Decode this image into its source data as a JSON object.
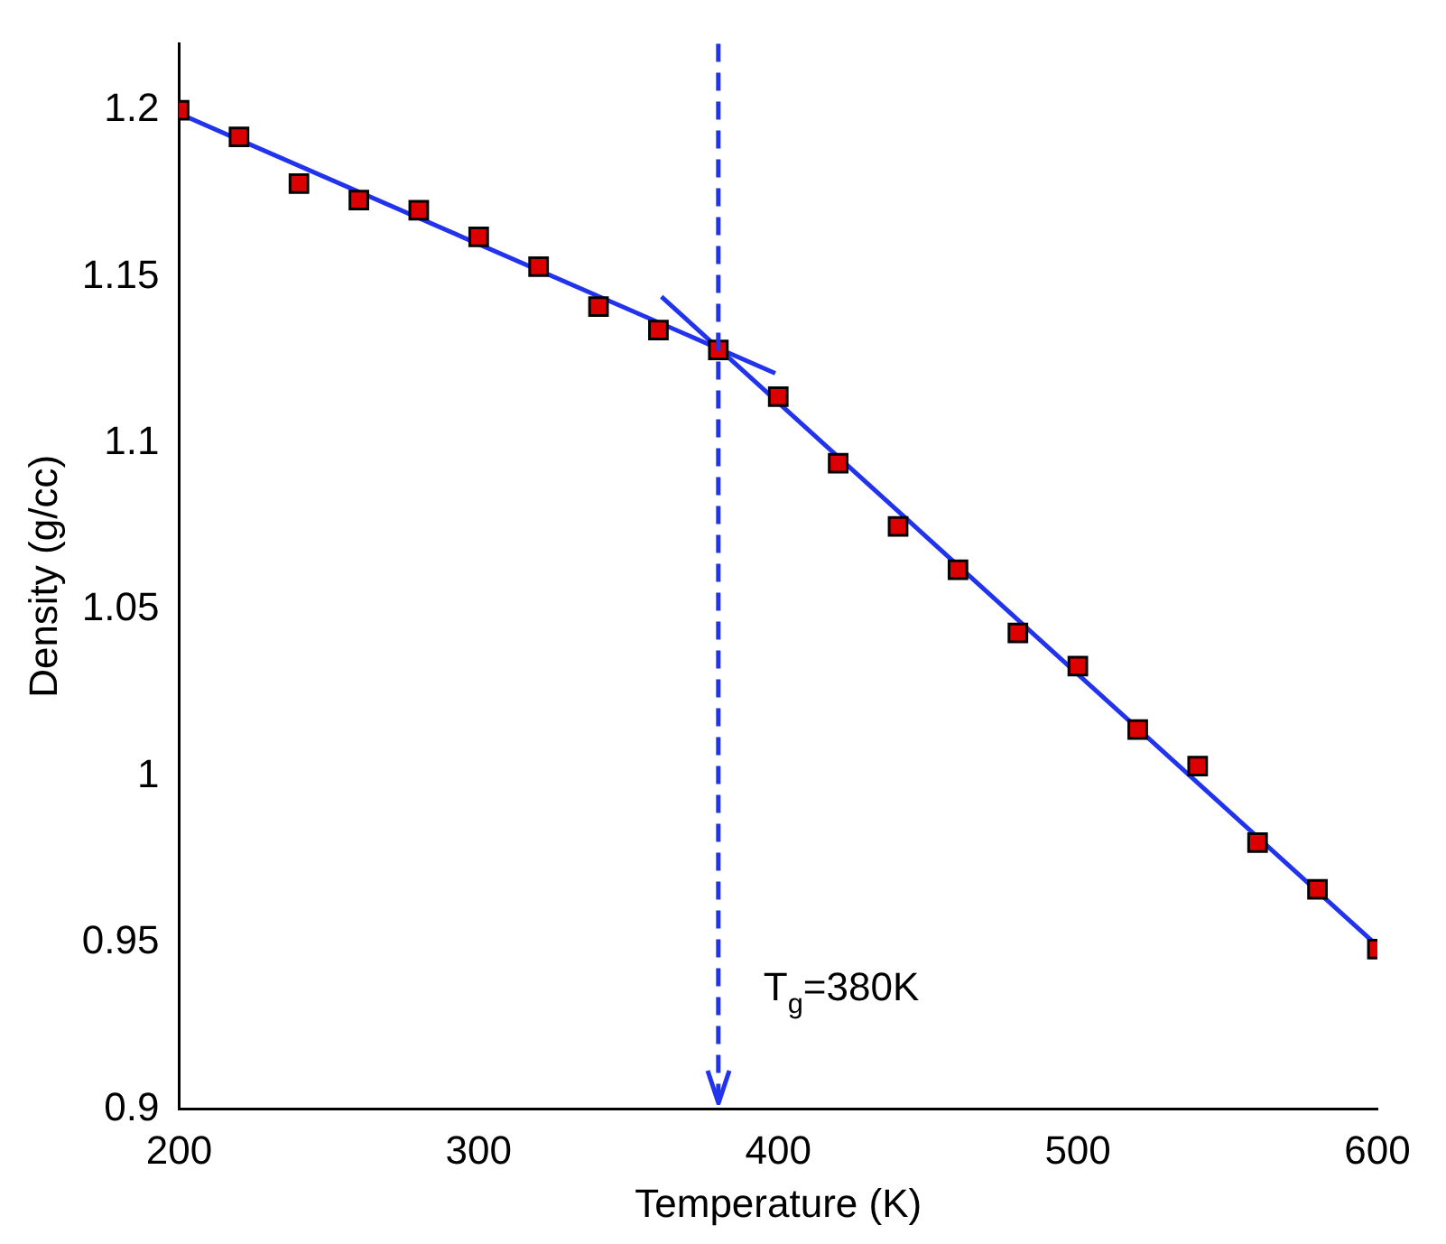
{
  "chart_data": {
    "type": "scatter",
    "xlabel": "Temperature (K)",
    "ylabel": "Density (g/cc)",
    "xlim": [
      200,
      600
    ],
    "xticks": [
      200,
      300,
      400,
      500,
      600
    ],
    "ylim": [
      0.9,
      1.22
    ],
    "yticks": [
      0.9,
      0.95,
      1,
      1.05,
      1.1,
      1.15,
      1.2
    ],
    "grid": false,
    "legend": false,
    "marker": "square",
    "series": [
      {
        "type": "line",
        "color": "#2233ee",
        "x": [
          200,
          399
        ],
        "values": [
          1.199,
          1.121
        ],
        "marker": "none",
        "line_style": "solid"
      },
      {
        "type": "line",
        "color": "#2233ee",
        "x": [
          361,
          600
        ],
        "values": [
          1.144,
          0.949
        ],
        "marker": "none",
        "line_style": "solid"
      },
      {
        "type": "scatter",
        "color": "#dd0000",
        "x": [
          200,
          220,
          240,
          260,
          280,
          300,
          320,
          340,
          360,
          380,
          400,
          420,
          440,
          460,
          480,
          500,
          520,
          540,
          560,
          580,
          600
        ],
        "values": [
          1.2,
          1.192,
          1.178,
          1.173,
          1.17,
          1.162,
          1.153,
          1.141,
          1.134,
          1.128,
          1.114,
          1.094,
          1.075,
          1.062,
          1.043,
          1.033,
          1.014,
          1.003,
          0.98,
          0.966,
          0.948
        ]
      }
    ],
    "ref_lines": [
      {
        "axis": "x",
        "value": 380,
        "label": "T$_{g}$=380K",
        "color": "#2233ee",
        "line_style": "dashed"
      }
    ]
  }
}
